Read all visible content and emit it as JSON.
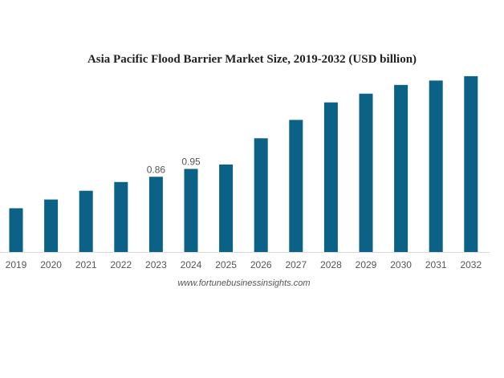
{
  "chart_data": {
    "type": "bar",
    "title": "Asia Pacific Flood Barrier Market Size, 2019-2032 (USD billion)",
    "xlabel": "",
    "ylabel": "",
    "categories": [
      "2019",
      "2020",
      "2021",
      "2022",
      "2023",
      "2024",
      "2025",
      "2026",
      "2027",
      "2028",
      "2029",
      "2030",
      "2031",
      "2032"
    ],
    "values": [
      0.5,
      0.6,
      0.7,
      0.8,
      0.86,
      0.95,
      1.0,
      1.3,
      1.51,
      1.71,
      1.81,
      1.91,
      1.96,
      2.01
    ],
    "data_labels": {
      "2023": "0.86",
      "2024": "0.95"
    },
    "ylim": [
      0,
      2.1
    ],
    "grid": false,
    "legend": "none",
    "bar_color": "#0b6186"
  },
  "source": "www.fortunebusinessinsights.com"
}
